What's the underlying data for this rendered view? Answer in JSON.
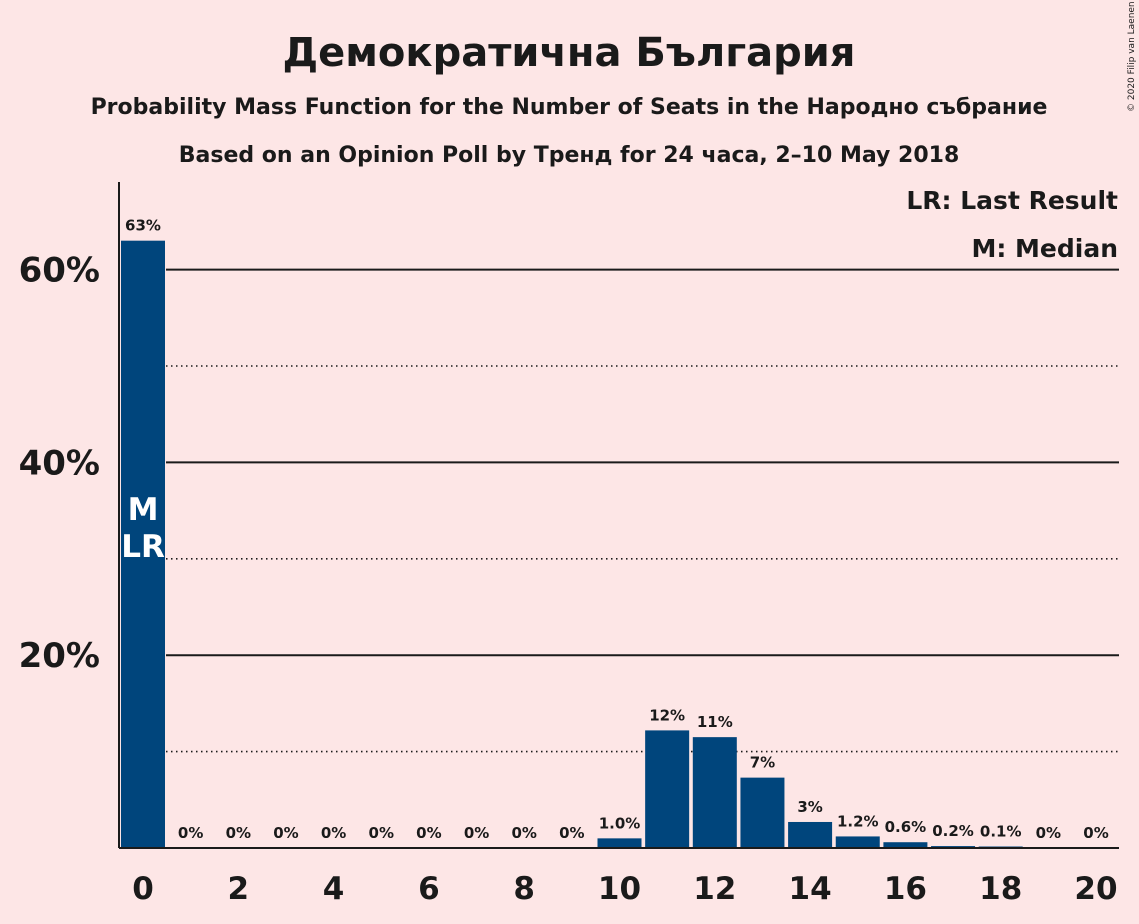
{
  "title": "Демократична България",
  "subtitle1": "Probability Mass Function for the Number of Seats in the Народно събрание",
  "subtitle2": "Based on an Opinion Poll by Тренд for 24 часа, 2–10 May 2018",
  "legend": {
    "last_result": "LR: Last Result",
    "median": "M: Median"
  },
  "copyright": "© 2020 Filip van Laenen",
  "colors": {
    "bar": "#00457c",
    "background": "#fde6e6",
    "text": "#1a1a1a"
  },
  "chart_data": {
    "type": "bar",
    "x": [
      0,
      1,
      2,
      3,
      4,
      5,
      6,
      7,
      8,
      9,
      10,
      11,
      12,
      13,
      14,
      15,
      16,
      17,
      18,
      19,
      20
    ],
    "values": [
      63,
      0,
      0,
      0,
      0,
      0,
      0,
      0,
      0,
      0,
      1.0,
      12,
      11,
      7,
      3,
      1.2,
      0.6,
      0.2,
      0.1,
      0,
      0
    ],
    "bar_values": [
      63,
      0,
      0,
      0,
      0,
      0,
      0,
      0,
      0,
      0,
      1.0,
      12.2,
      11.5,
      7.3,
      2.7,
      1.2,
      0.6,
      0.2,
      0.1,
      0,
      0
    ],
    "data_labels": [
      "63%",
      "0%",
      "0%",
      "0%",
      "0%",
      "0%",
      "0%",
      "0%",
      "0%",
      "0%",
      "1.0%",
      "12%",
      "11%",
      "7%",
      "3%",
      "1.2%",
      "0.6%",
      "0.2%",
      "0.1%",
      "0%",
      "0%"
    ],
    "x_ticks": [
      "0",
      "2",
      "4",
      "6",
      "8",
      "10",
      "12",
      "14",
      "16",
      "18",
      "20"
    ],
    "y_ticks": [
      {
        "value": 20,
        "label": "20%"
      },
      {
        "value": 40,
        "label": "40%"
      },
      {
        "value": 60,
        "label": "60%"
      }
    ],
    "y_minor_gridlines": [
      10,
      30,
      50
    ],
    "ylim": [
      0,
      69
    ],
    "median_seat": 0,
    "last_result_seat": 0,
    "median_marker": "M",
    "last_result_marker": "LR"
  }
}
